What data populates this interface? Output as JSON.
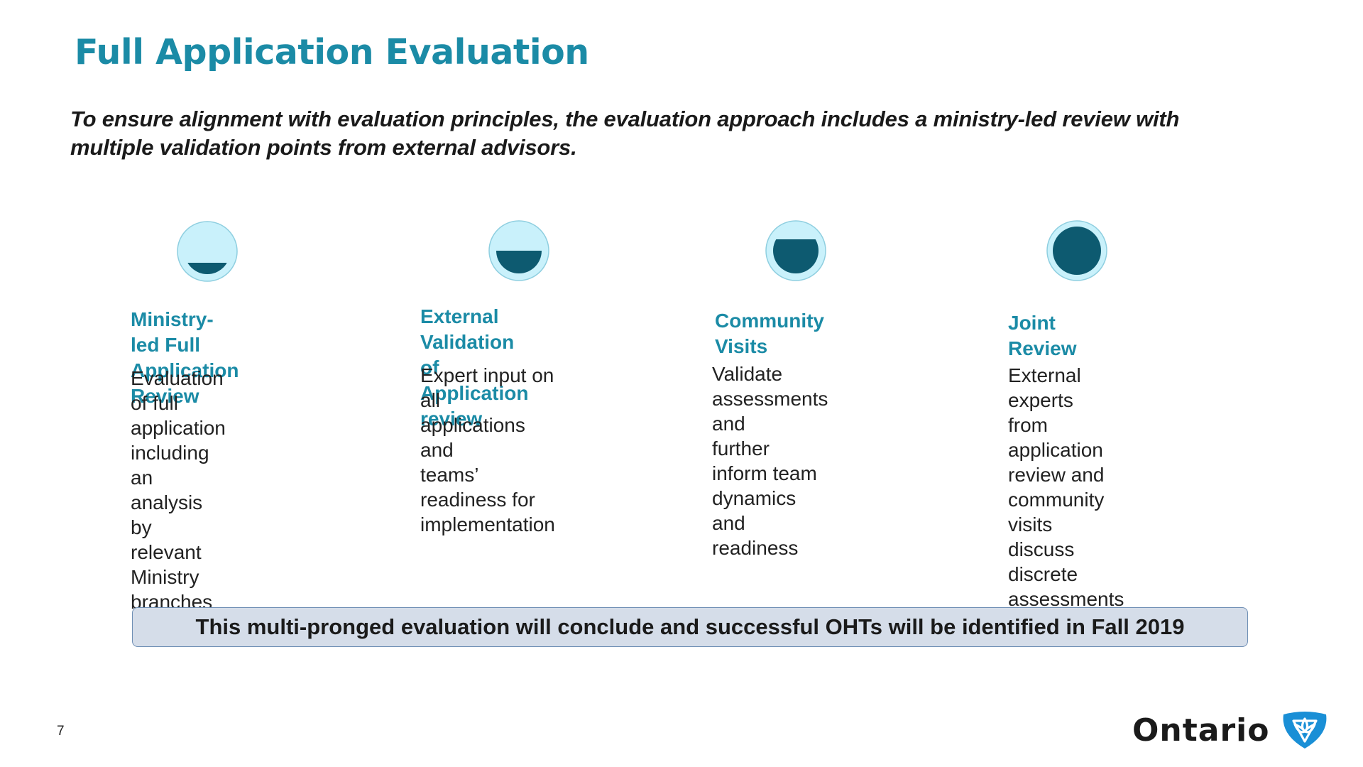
{
  "page": {
    "title": "Full Application Evaluation",
    "subtitle": "To ensure alignment with evaluation principles, the evaluation approach includes a ministry-led review with multiple validation points from external advisors.",
    "page_number": "7"
  },
  "steps": [
    {
      "title": "Ministry-led Full\nApplication Review",
      "description": "Evaluation of full\napplication including\nan analysis by\nrelevant Ministry\nbranches",
      "fill_fraction": 0.25,
      "icon": "quarter-filled-circle-icon"
    },
    {
      "title": "External Validation\nof Application review",
      "description": "Expert input on all\napplications and\nteams’ readiness for\nimplementation",
      "fill_fraction": 0.5,
      "icon": "half-filled-circle-icon"
    },
    {
      "title": "Community Visits",
      "description": "Validate\nassessments and\nfurther inform team\ndynamics and\nreadiness",
      "fill_fraction": 0.75,
      "icon": "three-quarter-filled-circle-icon"
    },
    {
      "title": "Joint Review",
      "description": "External experts\nfrom application\nreview and\ncommunity visits\ndiscuss discrete\nassessments",
      "fill_fraction": 1.0,
      "icon": "full-circle-icon"
    }
  ],
  "banner": {
    "text": "This multi-pronged evaluation will conclude and successful OHTs will be identified in Fall 2019"
  },
  "logo": {
    "text": "Ontario",
    "icon": "ontario-trillium-logo-icon"
  },
  "colors": {
    "accent": "#1b8ba6",
    "icon_fill": "#0d5a70",
    "icon_light": "#c9f1fb",
    "banner_bg": "#d5dde9",
    "logo_blue": "#1a8fd6"
  }
}
